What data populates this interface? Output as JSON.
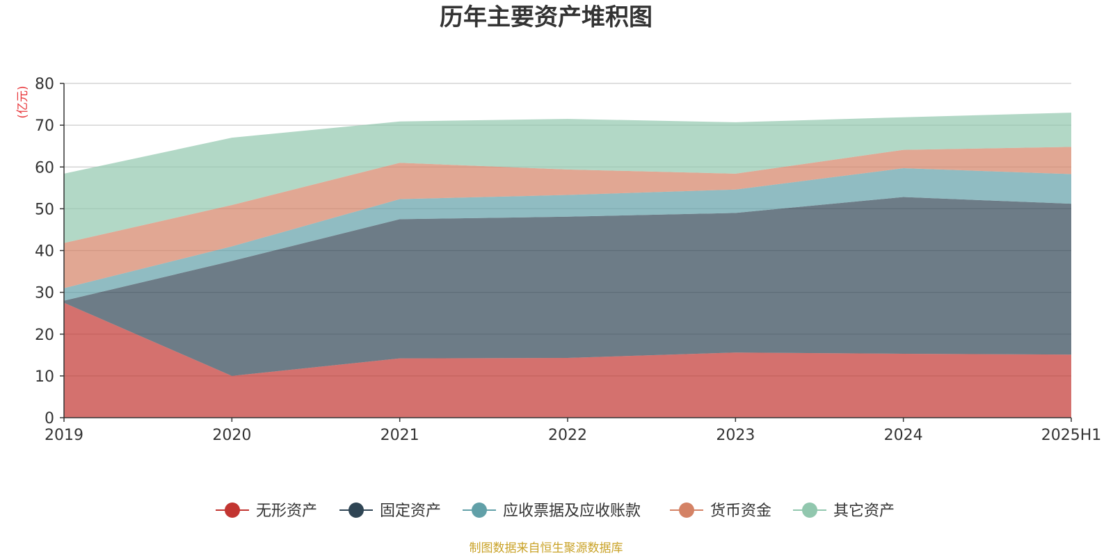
{
  "chart_data": {
    "type": "area",
    "stacked": true,
    "title": "历年主要资产堆积图",
    "ylabel": "(亿元)",
    "xlabel": "",
    "ylim": [
      0,
      80
    ],
    "yticks": [
      0,
      10,
      20,
      30,
      40,
      50,
      60,
      70,
      80
    ],
    "categories": [
      "2019",
      "2020",
      "2021",
      "2022",
      "2023",
      "2024",
      "2025H1"
    ],
    "series": [
      {
        "name": "无形资产",
        "color": "#c23531",
        "values": [
          27.5,
          10.0,
          14.2,
          14.3,
          15.6,
          15.3,
          15.1
        ]
      },
      {
        "name": "固定资产",
        "color": "#2f4554",
        "values": [
          0.5,
          27.5,
          33.3,
          33.8,
          33.4,
          37.5,
          36.1
        ]
      },
      {
        "name": "应收票据及应收账款",
        "color": "#61a0a8",
        "values": [
          3.0,
          3.5,
          4.8,
          5.2,
          5.6,
          6.9,
          7.1
        ]
      },
      {
        "name": "货币资金",
        "color": "#d48265",
        "values": [
          10.8,
          9.9,
          8.7,
          6.1,
          3.8,
          4.4,
          6.5
        ]
      },
      {
        "name": "其它资产",
        "color": "#91c7ae",
        "values": [
          16.6,
          16.1,
          9.9,
          12.1,
          12.3,
          7.8,
          8.2
        ]
      }
    ],
    "legend_position": "bottom",
    "grid": true
  },
  "source_note": "制图数据来自恒生聚源数据库"
}
